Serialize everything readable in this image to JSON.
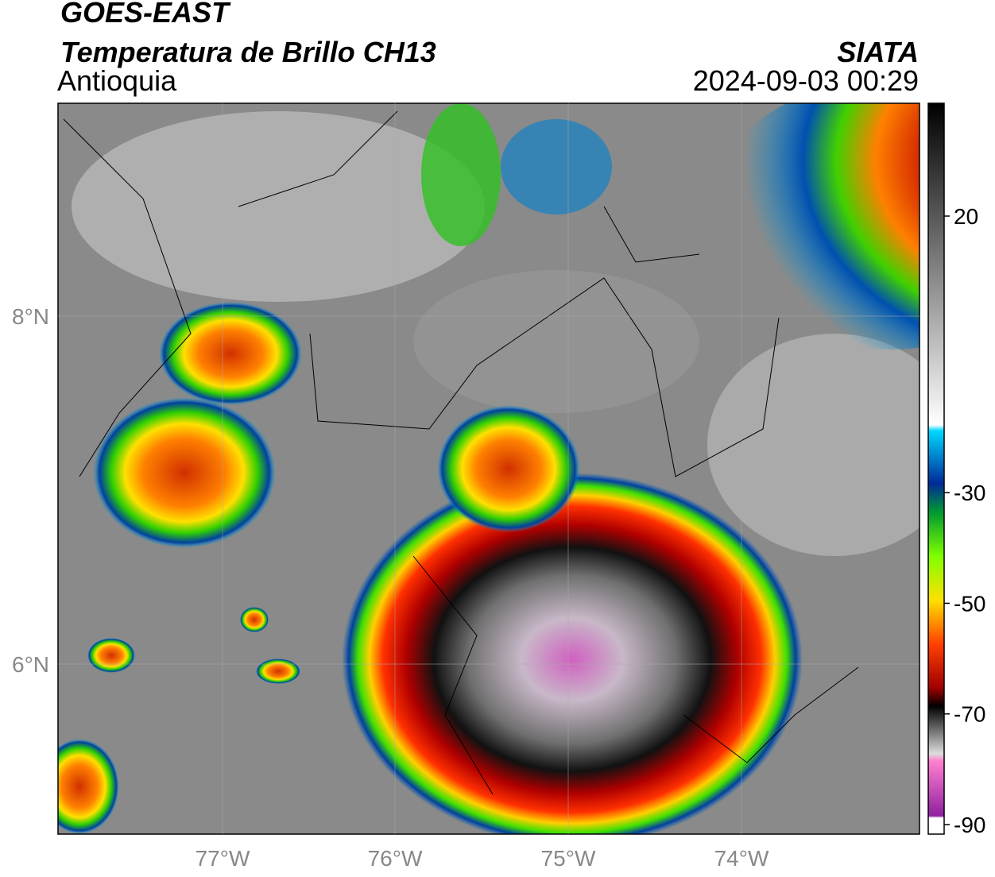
{
  "header": {
    "title": "GOES-EAST",
    "subtitle": "Temperatura de Brillo CH13",
    "region": "Antioquia",
    "agency": "SIATA",
    "datetime": "2024-09-03 00:29"
  },
  "map": {
    "lat_labels": [
      "8°N",
      "6°N"
    ],
    "lon_labels": [
      "77°W",
      "76°W",
      "75°W",
      "74°W"
    ]
  },
  "colorbar": {
    "ticks": [
      20,
      -30,
      -50,
      -70,
      -90
    ]
  }
}
